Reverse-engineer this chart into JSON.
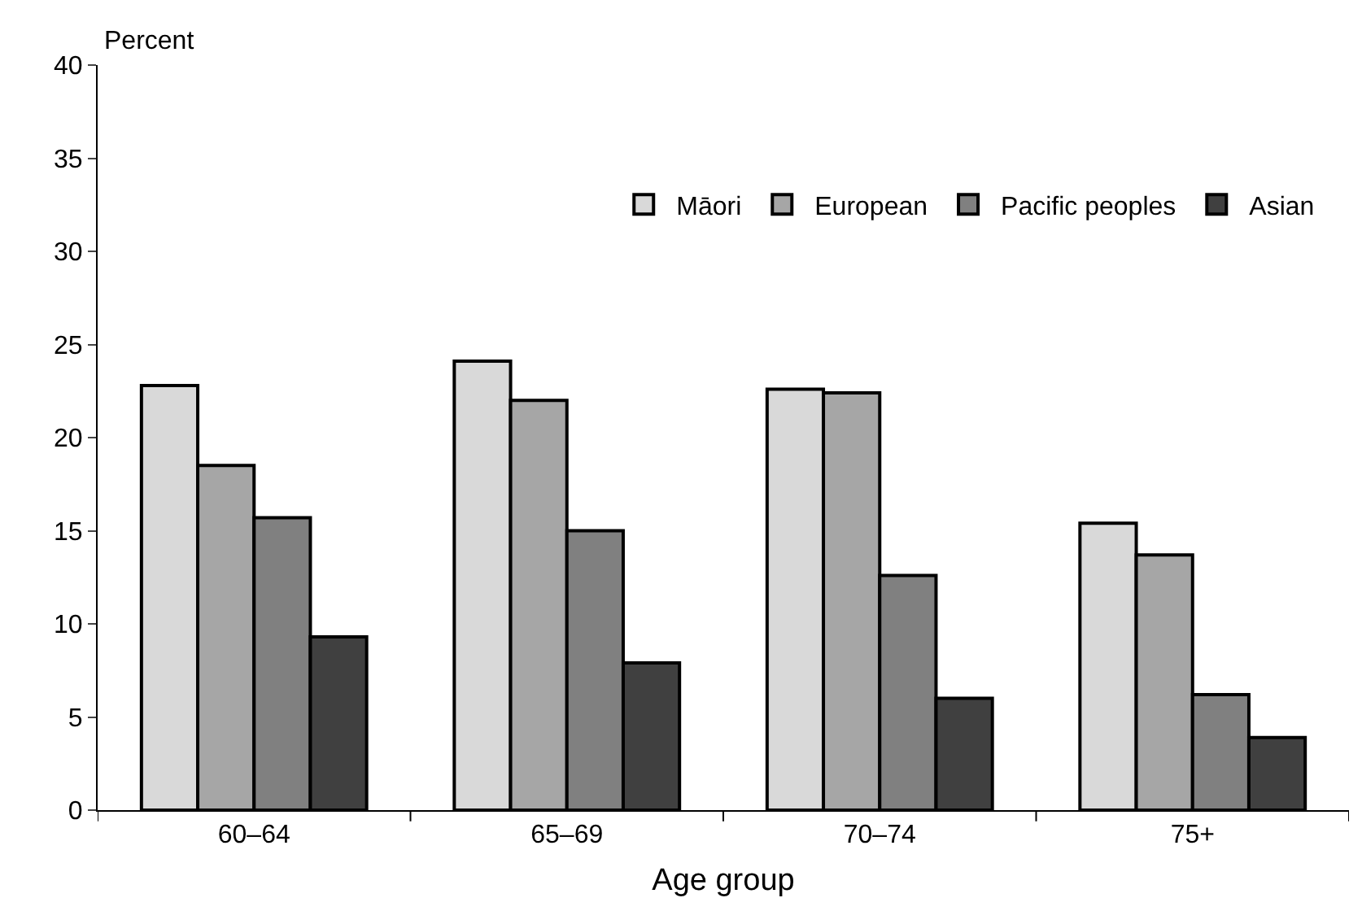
{
  "chart_data": {
    "type": "bar",
    "ylabel": "Percent",
    "xlabel": "Age group",
    "categories": [
      "60–64",
      "65–69",
      "70–74",
      "75+"
    ],
    "series": [
      {
        "name": "Māori",
        "color": "#d9d9d9",
        "values": [
          22.8,
          24.1,
          22.6,
          15.4
        ]
      },
      {
        "name": "European",
        "color": "#a6a6a6",
        "values": [
          18.5,
          22.0,
          22.4,
          13.7
        ]
      },
      {
        "name": "Pacific peoples",
        "color": "#808080",
        "values": [
          15.7,
          15.0,
          12.6,
          6.2
        ]
      },
      {
        "name": "Asian",
        "color": "#404040",
        "values": [
          9.3,
          7.9,
          6.0,
          3.9
        ]
      }
    ],
    "ylim": [
      0,
      40
    ],
    "yticks": [
      0,
      5,
      10,
      15,
      20,
      25,
      30,
      35,
      40
    ],
    "grid": false,
    "legend": "top right"
  }
}
